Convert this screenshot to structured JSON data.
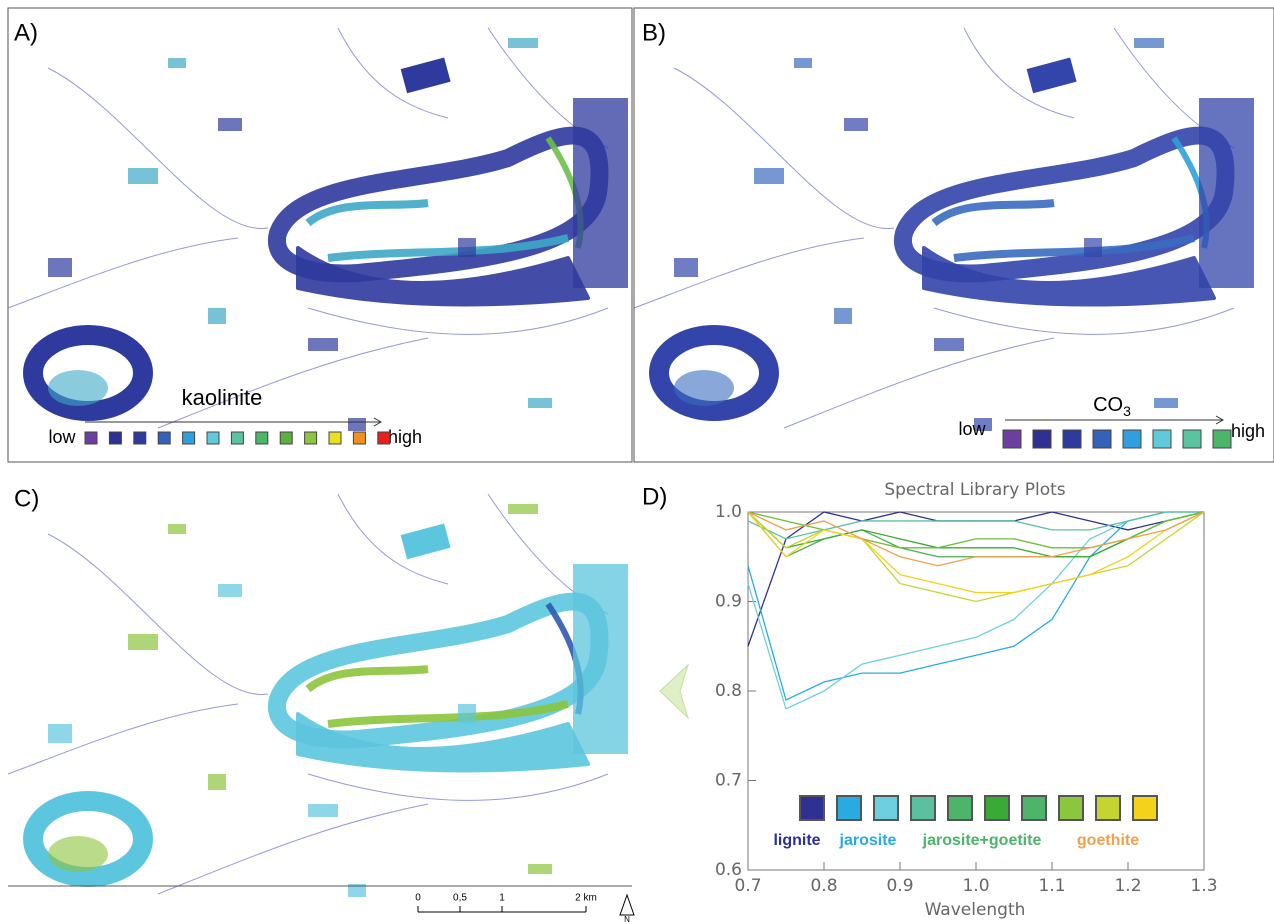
{
  "panels": {
    "a": {
      "label": "A)",
      "legend_title": "kaolinite",
      "low": "low",
      "high": "high",
      "swatch_colors": [
        "#6a3fa0",
        "#2e3192",
        "#2d3a9e",
        "#3561b8",
        "#2fa0dc",
        "#5fcbd8",
        "#5cc3a0",
        "#4cb56a",
        "#5cb040",
        "#8cc63f",
        "#e8e020",
        "#f0901e",
        "#e8201e"
      ]
    },
    "b": {
      "label": "B)",
      "legend_title": "CO",
      "legend_title_sub": "3",
      "low": "low",
      "high": "high",
      "swatch_colors": [
        "#6a3fa0",
        "#2e3192",
        "#2d3a9e",
        "#3561b8",
        "#2fa0dc",
        "#5fcbd8",
        "#5cc3a0",
        "#4cb56a"
      ]
    },
    "c": {
      "label": "C)"
    },
    "d": {
      "label": "D)"
    }
  },
  "scale_bar": {
    "ticks": [
      {
        "value": 0,
        "label": "0"
      },
      {
        "value": 0.5,
        "label": "0,5"
      },
      {
        "value": 1,
        "label": "1"
      },
      {
        "value": 2,
        "label": "2 km"
      }
    ],
    "north": "N"
  },
  "chart_data": {
    "type": "line",
    "title": "Spectral Library Plots",
    "x_label": "Wavelength",
    "x": [
      0.7,
      0.75,
      0.8,
      0.85,
      0.9,
      0.95,
      1.0,
      1.05,
      1.1,
      1.15,
      1.2,
      1.25,
      1.3
    ],
    "xlim": [
      0.7,
      1.3
    ],
    "ylim": [
      0.6,
      1.0
    ],
    "xticks": [
      0.7,
      0.8,
      0.9,
      {
        "value": 1,
        "label": "1.0"
      },
      1.1,
      1.2,
      1.3
    ],
    "yticks": [
      0.6,
      0.7,
      0.8,
      0.9,
      {
        "value": 1,
        "label": "1.0"
      }
    ],
    "series": [
      {
        "color": "#2e3192",
        "values": [
          0.85,
          0.97,
          1.0,
          0.99,
          1.0,
          0.99,
          0.99,
          0.99,
          1.0,
          0.99,
          0.98,
          0.99,
          1.0
        ]
      },
      {
        "color": "#29abe2",
        "values": [
          0.94,
          0.79,
          0.81,
          0.82,
          0.82,
          0.83,
          0.84,
          0.85,
          0.88,
          0.95,
          0.99,
          1.0,
          1.0
        ]
      },
      {
        "color": "#6dcfe0",
        "values": [
          0.92,
          0.78,
          0.8,
          0.83,
          0.84,
          0.85,
          0.86,
          0.88,
          0.92,
          0.97,
          0.99,
          1.0,
          1.0
        ]
      },
      {
        "color": "#5bc0a0",
        "values": [
          0.99,
          0.97,
          0.98,
          0.99,
          0.99,
          0.99,
          0.99,
          0.99,
          0.98,
          0.98,
          0.99,
          1.0,
          1.0
        ]
      },
      {
        "color": "#4caf50",
        "values": [
          1.0,
          0.95,
          0.97,
          0.98,
          0.96,
          0.95,
          0.95,
          0.95,
          0.95,
          0.95,
          0.97,
          0.99,
          1.0
        ]
      },
      {
        "color": "#3aa935",
        "values": [
          1.0,
          0.96,
          0.97,
          0.98,
          0.97,
          0.96,
          0.96,
          0.96,
          0.95,
          0.95,
          0.97,
          0.99,
          1.0
        ]
      },
      {
        "color": "#6abf3a",
        "values": [
          1.0,
          0.99,
          0.98,
          0.97,
          0.96,
          0.96,
          0.97,
          0.97,
          0.96,
          0.96,
          0.97,
          0.99,
          1.0
        ]
      },
      {
        "color": "#c5d430",
        "values": [
          1.0,
          0.96,
          0.98,
          0.97,
          0.92,
          0.91,
          0.9,
          0.91,
          0.92,
          0.93,
          0.94,
          0.97,
          1.0
        ]
      },
      {
        "color": "#f2d21b",
        "values": [
          1.0,
          0.95,
          0.98,
          0.97,
          0.93,
          0.92,
          0.91,
          0.91,
          0.92,
          0.93,
          0.95,
          0.98,
          1.0
        ]
      },
      {
        "color": "#f0a04b",
        "values": [
          1.0,
          0.98,
          0.99,
          0.97,
          0.95,
          0.94,
          0.95,
          0.95,
          0.95,
          0.96,
          0.97,
          0.98,
          1.0
        ]
      }
    ],
    "legend": {
      "swatch_colors": [
        "#2e3192",
        "#29abe2",
        "#6dcfe0",
        "#5bc0a0",
        "#4cb56a",
        "#3aa935",
        "#4cb56a",
        "#8cc63f",
        "#c5d430",
        "#f2d21b"
      ],
      "groups": [
        {
          "label": "lignite",
          "color": "#2e3192"
        },
        {
          "label": "jarosite",
          "color": "#29abe2"
        },
        {
          "label": "jarosite+goetite",
          "color": "#4cb56a"
        },
        {
          "label": "goethite",
          "color": "#f0a04b"
        }
      ]
    }
  }
}
